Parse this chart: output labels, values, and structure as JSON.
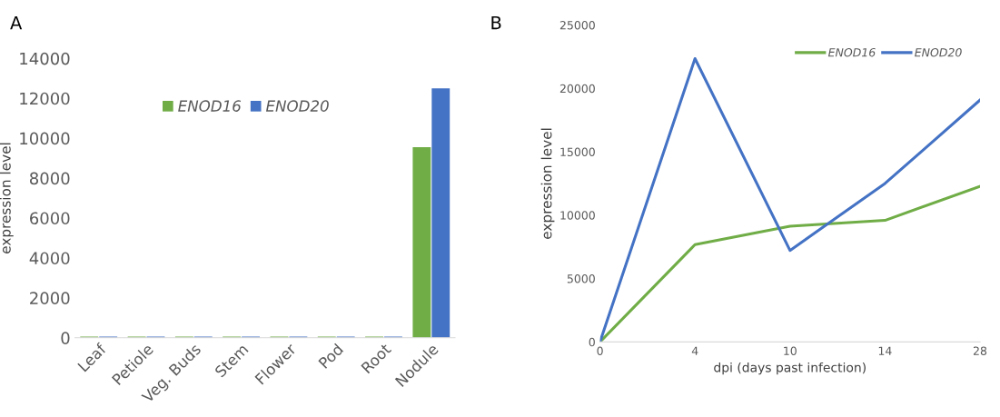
{
  "chart_data": [
    {
      "type": "bar",
      "title": "A",
      "ylabel": "expression level",
      "categories": [
        "Leaf",
        "Petiole",
        "Veg. Buds",
        "Stem",
        "Flower",
        "Pod",
        "Root",
        "Nodule"
      ],
      "series": [
        {
          "name": "ENOD16",
          "color": "#70ad47",
          "values": [
            60,
            60,
            60,
            60,
            60,
            60,
            60,
            9550
          ]
        },
        {
          "name": "ENOD20",
          "color": "#4472c4",
          "values": [
            60,
            60,
            60,
            60,
            60,
            60,
            60,
            12500
          ]
        }
      ],
      "ylim": [
        0,
        14000
      ],
      "yticks": [
        0,
        2000,
        4000,
        6000,
        8000,
        10000,
        12000,
        14000
      ],
      "legend": "top",
      "grid": false
    },
    {
      "type": "line",
      "title": "B",
      "xlabel": "dpi (days past infection)",
      "ylabel": "expression level",
      "categories": [
        "0",
        "4",
        "10",
        "14",
        "28"
      ],
      "series": [
        {
          "name": "ENOD16",
          "color": "#70ad47",
          "values": [
            0,
            7680,
            9130,
            9590,
            12270
          ]
        },
        {
          "name": "ENOD20",
          "color": "#4472c4",
          "values": [
            0,
            22350,
            7220,
            12500,
            19080
          ]
        }
      ],
      "ylim": [
        0,
        25000
      ],
      "yticks": [
        0,
        5000,
        10000,
        15000,
        20000,
        25000
      ],
      "legend": "top right",
      "grid": false,
      "marker": "none",
      "line_style": "solid"
    }
  ]
}
